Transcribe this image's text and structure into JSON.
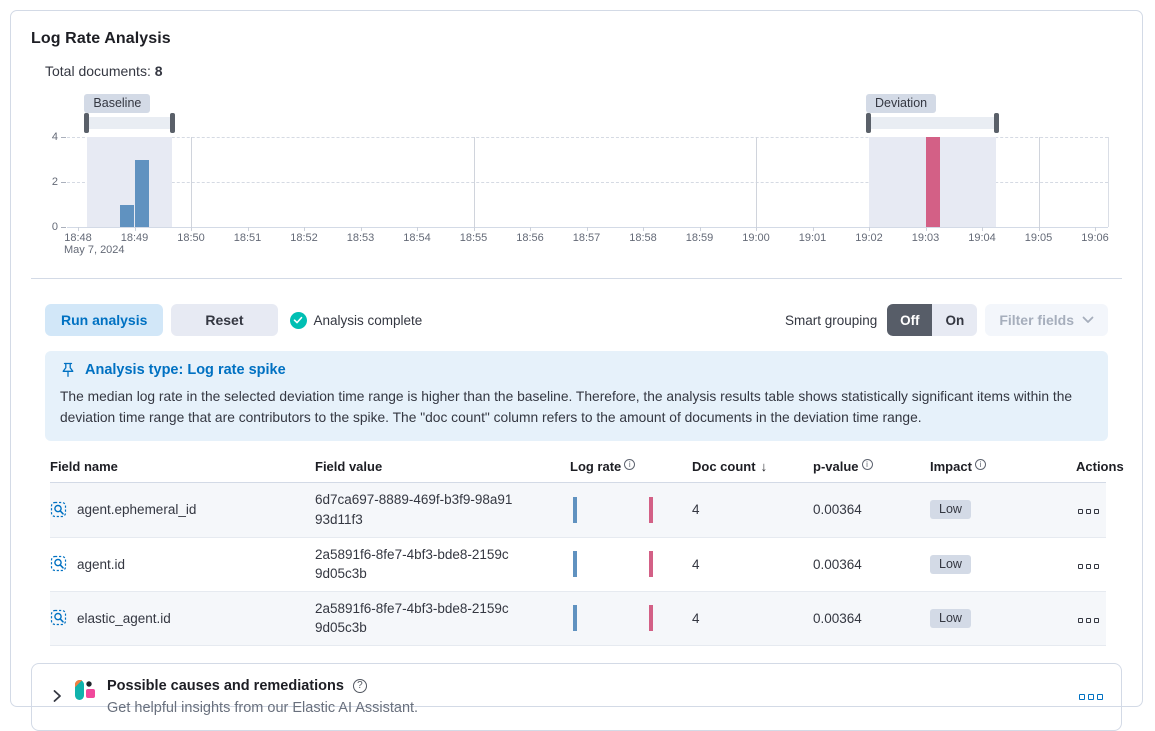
{
  "app": {
    "title": "Log Rate Analysis"
  },
  "summary": {
    "label": "Total documents:",
    "value": "8"
  },
  "chart_data": {
    "type": "bar",
    "title": "Document count histogram",
    "x_date": "May 7, 2024",
    "x_ticks": [
      "18:48",
      "18:49",
      "18:50",
      "18:51",
      "18:52",
      "18:53",
      "18:54",
      "18:55",
      "18:56",
      "18:57",
      "18:58",
      "18:59",
      "19:00",
      "19:01",
      "19:02",
      "19:03",
      "19:04",
      "19:05",
      "19:06"
    ],
    "y_ticks": [
      4,
      2,
      0
    ],
    "ylim": [
      0,
      4
    ],
    "bucket_seconds": 15,
    "series": [
      {
        "name": "Baseline",
        "color": "#6092C0",
        "points": [
          {
            "time": "18:48:45",
            "count": 1
          },
          {
            "time": "18:49:00",
            "count": 3
          }
        ]
      },
      {
        "name": "Deviation",
        "color": "#D36086",
        "points": [
          {
            "time": "19:03:00",
            "count": 4
          }
        ]
      }
    ],
    "windows": [
      {
        "name": "Baseline",
        "start": "18:48:10",
        "end": "18:49:40"
      },
      {
        "name": "Deviation",
        "start": "19:02:00",
        "end": "19:04:15"
      }
    ],
    "grid": {
      "horizontal": "dashed at 2 and 4",
      "vertical": "solid at 5-minute marks"
    },
    "legend": "none"
  },
  "controls": {
    "run_label": "Run analysis",
    "reset_label": "Reset",
    "status_label": "Analysis complete",
    "smart_grouping_label": "Smart grouping",
    "off_label": "Off",
    "on_label": "On",
    "filter_fields_label": "Filter fields"
  },
  "callout": {
    "title": "Analysis type: Log rate spike",
    "body": "The median log rate in the selected deviation time range is higher than the baseline. Therefore, the analysis results table shows statistically significant items within the deviation time range that are contributors to the spike. The \"doc count\" column refers to the amount of documents in the deviation time range."
  },
  "table": {
    "headers": [
      "Field name",
      "Field value",
      "Log rate",
      "Doc count",
      "p-value",
      "Impact",
      "Actions"
    ],
    "rows": [
      {
        "field_name": "agent.ephemeral_id",
        "field_value": "6d7ca697-8889-469f-b3f9-98a9193d11f3",
        "doc_count": "4",
        "p_value": "0.00364",
        "impact": "Low"
      },
      {
        "field_name": "agent.id",
        "field_value": "2a5891f6-8fe7-4bf3-bde8-2159c9d05c3b",
        "doc_count": "4",
        "p_value": "0.00364",
        "impact": "Low"
      },
      {
        "field_name": "elastic_agent.id",
        "field_value": "2a5891f6-8fe7-4bf3-bde8-2159c9d05c3b",
        "doc_count": "4",
        "p_value": "0.00364",
        "impact": "Low"
      }
    ]
  },
  "accordion": {
    "title": "Possible causes and remediations",
    "subtitle": "Get helpful insights from our Elastic AI Assistant."
  },
  "colors": {
    "accent": "#0071C2",
    "bar_blue": "#6092C0",
    "bar_pink": "#D36086",
    "success": "#00BFB3",
    "badge_bg": "#D3DAE6",
    "callout_bg": "#E6F1FA",
    "border": "#D3DAE6"
  }
}
